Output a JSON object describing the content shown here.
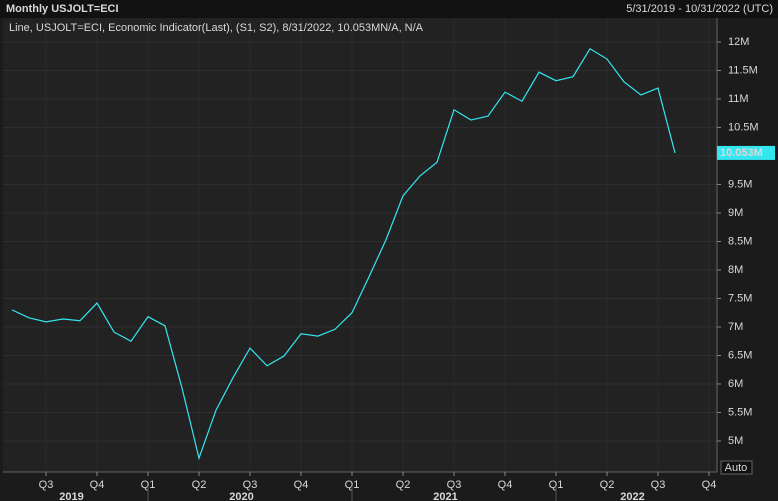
{
  "chart_data": {
    "type": "line",
    "title": "Monthly USJOLT=ECI",
    "subtitle": "5/31/2019 - 10/31/2022 (UTC)",
    "categories": [
      null,
      null,
      "Q3",
      null,
      null,
      "Q4",
      null,
      null,
      "Q1",
      null,
      null,
      "Q2",
      null,
      null,
      "Q3",
      null,
      null,
      "Q4",
      null,
      null,
      "Q1",
      null,
      null,
      "Q2",
      null,
      null,
      "Q3",
      null,
      null,
      "Q4",
      null,
      null,
      "Q1",
      null,
      null,
      "Q2",
      null,
      null,
      "Q3",
      null,
      null,
      "Q4"
    ],
    "x_group_labels": [
      "2019",
      "2020",
      "2021",
      "2022"
    ],
    "series": [
      {
        "name": "Line, USJOLT=ECI, Economic Indicator(Last), (S1, S2), 8/31/2022, 10.053MN/A, N/A",
        "color": "#33e6f0",
        "values": [
          7.3,
          7.16,
          7.09,
          7.14,
          7.11,
          7.42,
          6.91,
          6.75,
          7.18,
          7.02,
          5.93,
          4.7,
          5.54,
          6.11,
          6.63,
          6.32,
          6.49,
          6.88,
          6.84,
          6.96,
          7.25,
          7.88,
          8.53,
          9.3,
          9.65,
          9.89,
          10.81,
          10.63,
          10.7,
          11.12,
          10.96,
          11.47,
          11.32,
          11.39,
          11.88,
          11.7,
          11.3,
          11.07,
          11.19,
          10.053,
          null,
          null
        ],
        "value_labels": [
          null,
          null,
          null,
          null,
          null,
          null,
          null,
          null,
          null,
          null,
          null,
          null,
          null,
          null,
          null,
          null,
          null,
          null,
          null,
          null,
          null,
          null,
          null,
          null,
          null,
          null,
          null,
          null,
          null,
          null,
          null,
          null,
          null,
          null,
          null,
          null,
          null,
          null,
          null,
          "10.053M",
          null,
          null
        ]
      }
    ],
    "ylim": [
      4.456,
      12.42
    ],
    "yticks": [
      {
        "value": 5,
        "label": "5M"
      },
      {
        "value": 5.5,
        "label": "5.5M"
      },
      {
        "value": 6,
        "label": "6M"
      },
      {
        "value": 6.5,
        "label": "6.5M"
      },
      {
        "value": 7,
        "label": "7M"
      },
      {
        "value": 7.5,
        "label": "7.5M"
      },
      {
        "value": 8,
        "label": "8M"
      },
      {
        "value": 8.5,
        "label": "8.5M"
      },
      {
        "value": 9,
        "label": "9M"
      },
      {
        "value": 9.5,
        "label": "9.5M"
      },
      {
        "value": 10,
        "label": "10M"
      },
      {
        "value": 10.5,
        "label": "10.5M"
      },
      {
        "value": 11,
        "label": "11M"
      },
      {
        "value": 11.5,
        "label": "11.5M"
      },
      {
        "value": 12,
        "label": "12M"
      }
    ],
    "grid": true,
    "scale_button": "Auto"
  }
}
